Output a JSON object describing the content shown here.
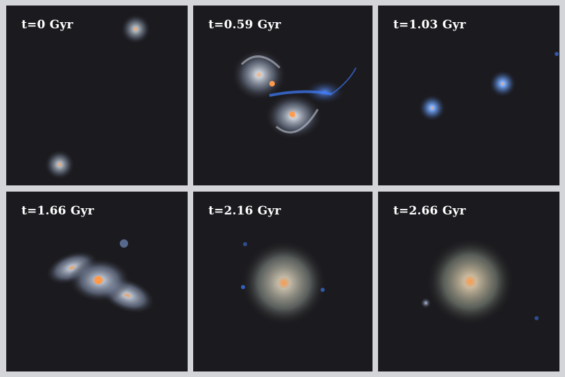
{
  "figure": {
    "colors": {
      "background": "#d4d5d8",
      "panel": "#1b1a1e",
      "label": "#ffffff",
      "core": "#ff9a4a",
      "disk": "#c9cfd8",
      "young_stars": "#3f7fff"
    },
    "panels": [
      {
        "label": "t=0 Gyr"
      },
      {
        "label": "t=0.59 Gyr"
      },
      {
        "label": "t=1.03 Gyr"
      },
      {
        "label": "t=1.66 Gyr"
      },
      {
        "label": "t=2.16 Gyr"
      },
      {
        "label": "t=2.66 Gyr"
      }
    ]
  }
}
